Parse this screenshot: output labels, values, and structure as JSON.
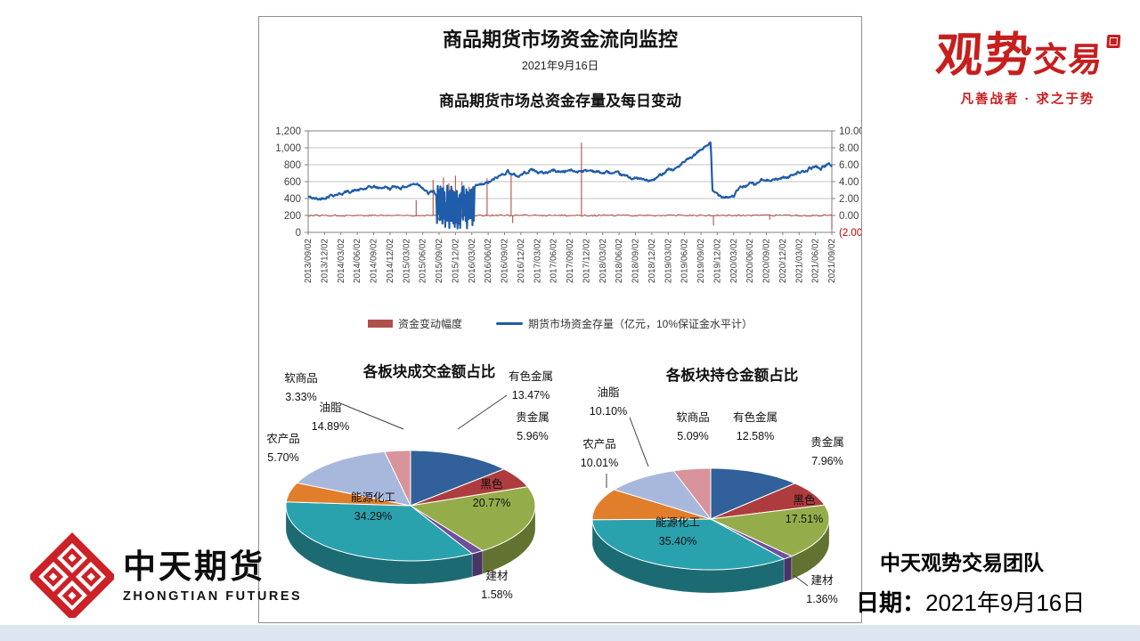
{
  "page": {
    "report_title": "商品期货市场资金流向监控",
    "report_date": "2021年9月16日",
    "team_name": "中天观势交易团队",
    "date_label": "日期：",
    "date_value": "2021年9月16日",
    "brand_top_right": {
      "name_part1": "观势",
      "name_part2": "交易",
      "tagline": "凡善战者 · 求之于势"
    },
    "brand_bottom_left": {
      "name_cn": "中天期货",
      "name_en": "ZHONGTIAN FUTURES"
    }
  },
  "chart_data": [
    {
      "type": "line",
      "title": "商品期货市场总资金存量及每日变动",
      "x_ticks": [
        "2013/09/02",
        "2013/12/02",
        "2014/03/02",
        "2014/06/02",
        "2014/09/02",
        "2014/12/02",
        "2015/03/02",
        "2015/06/02",
        "2015/09/02",
        "2015/12/02",
        "2016/03/02",
        "2016/06/02",
        "2016/09/02",
        "2016/12/02",
        "2017/03/02",
        "2017/06/02",
        "2017/09/02",
        "2017/12/02",
        "2018/03/02",
        "2018/06/02",
        "2018/09/02",
        "2018/12/02",
        "2019/03/02",
        "2019/06/02",
        "2019/09/02",
        "2019/12/02",
        "2020/03/02",
        "2020/06/02",
        "2020/09/02",
        "2020/12/02",
        "2021/03/02",
        "2021/06/02",
        "2021/09/02"
      ],
      "x_range_months": [
        0,
        96
      ],
      "left_axis": {
        "ticks": [
          "1,200",
          "1,000",
          "800",
          "600",
          "400",
          "200",
          "0"
        ],
        "min": 0,
        "max": 1200
      },
      "right_axis": {
        "ticks": [
          "10.00",
          "8.00",
          "6.00",
          "4.00",
          "2.00",
          "0.00",
          "(2.00)"
        ],
        "min": -2,
        "max": 10,
        "negative_color": "#c00000"
      },
      "grid": true,
      "series": [
        {
          "name": "资金变动幅度",
          "axis": "right",
          "color": "#b0504a",
          "style": "spikes",
          "baseline": 0,
          "spikes": [
            [
              19.8,
              1.8
            ],
            [
              22.9,
              4.2
            ],
            [
              24.8,
              4.5
            ],
            [
              25.8,
              3.8
            ],
            [
              27.0,
              4.7
            ],
            [
              28.2,
              4.0
            ],
            [
              29.5,
              3.4
            ],
            [
              32.8,
              4.4
            ],
            [
              37.2,
              5.0
            ],
            [
              37.5,
              -0.9
            ],
            [
              50.1,
              8.6
            ],
            [
              74.3,
              -1.2
            ],
            [
              84.6,
              -0.5
            ],
            [
              96,
              -1.6
            ]
          ]
        },
        {
          "name": "期货市场资金存量（亿元，10%保证金水平计）",
          "axis": "left",
          "color": "#1f5ca9",
          "style": "line",
          "keypoints": [
            [
              0,
              420
            ],
            [
              1,
              400
            ],
            [
              2,
              390
            ],
            [
              3,
              415
            ],
            [
              4,
              440
            ],
            [
              6,
              460
            ],
            [
              8,
              490
            ],
            [
              10,
              505
            ],
            [
              12,
              540
            ],
            [
              13,
              520
            ],
            [
              14,
              540
            ],
            [
              15,
              515
            ],
            [
              16,
              545
            ],
            [
              17,
              530
            ],
            [
              18,
              545
            ],
            [
              19,
              565
            ],
            [
              20,
              580
            ],
            [
              21,
              540
            ],
            [
              22,
              455
            ],
            [
              23,
              485
            ],
            [
              23.6,
              420
            ],
            [
              30.5,
              520
            ],
            [
              31,
              545
            ],
            [
              32,
              560
            ],
            [
              33,
              585
            ],
            [
              34,
              620
            ],
            [
              35,
              660
            ],
            [
              36,
              700
            ],
            [
              36.6,
              730
            ],
            [
              37.5,
              680
            ],
            [
              38.5,
              665
            ],
            [
              40,
              715
            ],
            [
              41,
              745
            ],
            [
              42,
              715
            ],
            [
              43,
              700
            ],
            [
              44,
              715
            ],
            [
              45,
              735
            ],
            [
              46,
              715
            ],
            [
              47,
              725
            ],
            [
              48,
              735
            ],
            [
              49,
              715
            ],
            [
              50,
              735
            ],
            [
              51,
              725
            ],
            [
              52,
              735
            ],
            [
              53,
              715
            ],
            [
              54,
              700
            ],
            [
              55,
              710
            ],
            [
              56,
              690
            ],
            [
              57,
              685
            ],
            [
              58,
              665
            ],
            [
              59,
              650
            ],
            [
              60,
              638
            ],
            [
              61,
              628
            ],
            [
              62,
              612
            ],
            [
              63,
              608
            ],
            [
              64,
              645
            ],
            [
              65,
              700
            ],
            [
              66,
              760
            ],
            [
              67,
              735
            ],
            [
              68,
              788
            ],
            [
              69,
              828
            ],
            [
              70,
              868
            ],
            [
              71,
              918
            ],
            [
              72,
              972
            ],
            [
              73,
              1028
            ],
            [
              73.8,
              1058
            ],
            [
              74.1,
              480
            ],
            [
              75,
              455
            ],
            [
              76,
              432
            ],
            [
              77,
              424
            ],
            [
              78,
              432
            ],
            [
              79,
              518
            ],
            [
              80,
              545
            ],
            [
              81,
              578
            ],
            [
              82,
              560
            ],
            [
              83,
              618
            ],
            [
              84,
              604
            ],
            [
              85,
              638
            ],
            [
              86,
              620
            ],
            [
              87,
              658
            ],
            [
              88,
              645
            ],
            [
              89,
              698
            ],
            [
              90,
              718
            ],
            [
              91,
              700
            ],
            [
              92,
              758
            ],
            [
              93,
              778
            ],
            [
              94,
              755
            ],
            [
              95,
              802
            ],
            [
              96,
              790
            ]
          ],
          "volatile_band": {
            "from": 23.6,
            "to": 30.4,
            "low": 110,
            "high": 500
          }
        }
      ],
      "legend_position": "bottom"
    },
    {
      "type": "pie",
      "title": "各板块成交金额占比",
      "slices": [
        {
          "label": "有色金属",
          "pct": 13.47,
          "color": "#31609b"
        },
        {
          "label": "贵金属",
          "pct": 5.96,
          "color": "#ae3c3e"
        },
        {
          "label": "黑色",
          "pct": 20.77,
          "color": "#94ad4a"
        },
        {
          "label": "建材",
          "pct": 1.58,
          "color": "#6f4f9c"
        },
        {
          "label": "能源化工",
          "pct": 34.29,
          "color": "#2aa2ae"
        },
        {
          "label": "农产品",
          "pct": 5.7,
          "color": "#e07e2c"
        },
        {
          "label": "油脂",
          "pct": 14.89,
          "color": "#a8b8dd"
        },
        {
          "label": "软商品",
          "pct": 3.33,
          "color": "#d8949a"
        }
      ]
    },
    {
      "type": "pie",
      "title": "各板块持仓金额占比",
      "slices": [
        {
          "label": "有色金属",
          "pct": 12.58,
          "color": "#31609b"
        },
        {
          "label": "贵金属",
          "pct": 7.96,
          "color": "#ae3c3e"
        },
        {
          "label": "黑色",
          "pct": 17.51,
          "color": "#94ad4a"
        },
        {
          "label": "建材",
          "pct": 1.36,
          "color": "#6f4f9c"
        },
        {
          "label": "能源化工",
          "pct": 35.4,
          "color": "#2aa2ae"
        },
        {
          "label": "农产品",
          "pct": 10.01,
          "color": "#e07e2c"
        },
        {
          "label": "油脂",
          "pct": 10.1,
          "color": "#a8b8dd"
        },
        {
          "label": "软商品",
          "pct": 5.09,
          "color": "#d8949a"
        }
      ]
    }
  ]
}
